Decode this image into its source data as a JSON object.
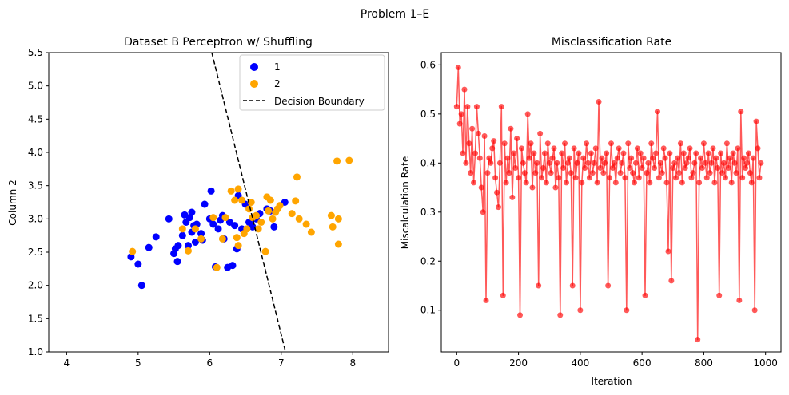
{
  "figure": {
    "suptitle": "Problem 1–E"
  },
  "chart_data": [
    {
      "type": "scatter",
      "title": "Dataset B Perceptron w/ Shuffling",
      "xlabel": "",
      "ylabel": "Column 2",
      "xlim": [
        3.75,
        8.5
      ],
      "ylim": [
        1.0,
        5.5
      ],
      "xticks": [
        "4",
        "5",
        "6",
        "7",
        "8"
      ],
      "yticks": [
        "1.0",
        "1.5",
        "2.0",
        "2.5",
        "3.0",
        "3.5",
        "4.0",
        "4.5",
        "5.0",
        "5.5"
      ],
      "grid": false,
      "legend_position": "top-right",
      "series": [
        {
          "name": "1",
          "color": "#0000ff",
          "points": [
            [
              4.9,
              2.43
            ],
            [
              5.0,
              2.32
            ],
            [
              5.05,
              2.0
            ],
            [
              5.15,
              2.57
            ],
            [
              5.25,
              2.73
            ],
            [
              5.43,
              3.0
            ],
            [
              5.5,
              2.48
            ],
            [
              5.52,
              2.55
            ],
            [
              5.55,
              2.36
            ],
            [
              5.56,
              2.6
            ],
            [
              5.62,
              2.75
            ],
            [
              5.65,
              3.06
            ],
            [
              5.67,
              2.95
            ],
            [
              5.7,
              2.6
            ],
            [
              5.72,
              3.02
            ],
            [
              5.75,
              3.1
            ],
            [
              5.75,
              2.8
            ],
            [
              5.78,
              2.9
            ],
            [
              5.8,
              2.65
            ],
            [
              5.82,
              2.92
            ],
            [
              5.88,
              2.78
            ],
            [
              5.9,
              2.68
            ],
            [
              5.93,
              3.22
            ],
            [
              6.0,
              3.0
            ],
            [
              6.02,
              3.42
            ],
            [
              6.05,
              2.92
            ],
            [
              6.08,
              2.28
            ],
            [
              6.12,
              2.85
            ],
            [
              6.15,
              2.98
            ],
            [
              6.18,
              3.05
            ],
            [
              6.2,
              2.7
            ],
            [
              6.25,
              2.27
            ],
            [
              6.28,
              2.95
            ],
            [
              6.32,
              2.3
            ],
            [
              6.35,
              2.9
            ],
            [
              6.38,
              2.55
            ],
            [
              6.4,
              3.35
            ],
            [
              6.45,
              2.85
            ],
            [
              6.5,
              3.22
            ],
            [
              6.55,
              2.95
            ],
            [
              6.6,
              2.88
            ],
            [
              6.65,
              3.0
            ],
            [
              6.7,
              3.08
            ],
            [
              6.8,
              3.15
            ],
            [
              6.85,
              3.12
            ],
            [
              6.9,
              2.88
            ],
            [
              7.05,
              3.25
            ]
          ]
        },
        {
          "name": "2",
          "color": "#ffa500",
          "points": [
            [
              4.92,
              2.51
            ],
            [
              5.62,
              2.85
            ],
            [
              5.7,
              2.52
            ],
            [
              5.8,
              2.85
            ],
            [
              5.88,
              2.7
            ],
            [
              6.05,
              3.02
            ],
            [
              6.1,
              2.27
            ],
            [
              6.18,
              2.7
            ],
            [
              6.22,
              3.02
            ],
            [
              6.3,
              3.42
            ],
            [
              6.35,
              3.28
            ],
            [
              6.38,
              2.72
            ],
            [
              6.4,
              3.45
            ],
            [
              6.4,
              2.6
            ],
            [
              6.45,
              3.28
            ],
            [
              6.48,
              2.78
            ],
            [
              6.52,
              2.85
            ],
            [
              6.55,
              3.15
            ],
            [
              6.58,
              3.25
            ],
            [
              6.6,
              3.02
            ],
            [
              6.65,
              3.05
            ],
            [
              6.68,
              2.85
            ],
            [
              6.72,
              2.95
            ],
            [
              6.78,
              2.51
            ],
            [
              6.8,
              3.33
            ],
            [
              6.82,
              3.12
            ],
            [
              6.85,
              3.28
            ],
            [
              6.88,
              3.0
            ],
            [
              6.92,
              3.1
            ],
            [
              6.95,
              3.15
            ],
            [
              6.98,
              3.2
            ],
            [
              7.15,
              3.08
            ],
            [
              7.2,
              3.27
            ],
            [
              7.22,
              3.63
            ],
            [
              7.25,
              3.0
            ],
            [
              7.35,
              2.92
            ],
            [
              7.42,
              2.8
            ],
            [
              7.7,
              3.05
            ],
            [
              7.72,
              2.88
            ],
            [
              7.78,
              3.87
            ],
            [
              7.8,
              3.0
            ],
            [
              7.8,
              2.62
            ],
            [
              7.95,
              3.88
            ]
          ]
        },
        {
          "name": "Decision Boundary",
          "style": "dashed",
          "color": "#000000",
          "line": [
            [
              6.03,
              5.5
            ],
            [
              7.06,
              1.0
            ]
          ]
        }
      ]
    },
    {
      "type": "line",
      "title": "Misclassification Rate",
      "xlabel": "Iteration",
      "ylabel": "Miscalculation Rate",
      "xlim": [
        -50,
        1050
      ],
      "ylim": [
        0.015,
        0.625
      ],
      "xticks": [
        "0",
        "200",
        "400",
        "600",
        "800",
        "1000"
      ],
      "yticks": [
        "0.1",
        "0.2",
        "0.3",
        "0.4",
        "0.5",
        "0.6"
      ],
      "grid": false,
      "series": [
        {
          "name": "",
          "color": "#ff0000",
          "x_start": 0,
          "x_step": 5,
          "values": [
            0.515,
            0.595,
            0.48,
            0.5,
            0.42,
            0.55,
            0.4,
            0.515,
            0.44,
            0.38,
            0.47,
            0.36,
            0.42,
            0.515,
            0.46,
            0.41,
            0.35,
            0.3,
            0.455,
            0.12,
            0.38,
            0.41,
            0.4,
            0.43,
            0.445,
            0.37,
            0.34,
            0.31,
            0.4,
            0.515,
            0.13,
            0.44,
            0.36,
            0.41,
            0.38,
            0.47,
            0.33,
            0.42,
            0.39,
            0.45,
            0.37,
            0.09,
            0.43,
            0.4,
            0.38,
            0.36,
            0.5,
            0.41,
            0.44,
            0.35,
            0.42,
            0.38,
            0.4,
            0.15,
            0.46,
            0.37,
            0.39,
            0.42,
            0.36,
            0.44,
            0.4,
            0.38,
            0.41,
            0.43,
            0.35,
            0.4,
            0.37,
            0.09,
            0.42,
            0.39,
            0.44,
            0.36,
            0.4,
            0.41,
            0.38,
            0.15,
            0.43,
            0.37,
            0.4,
            0.42,
            0.1,
            0.36,
            0.41,
            0.39,
            0.44,
            0.4,
            0.37,
            0.42,
            0.38,
            0.4,
            0.43,
            0.36,
            0.525,
            0.39,
            0.41,
            0.38,
            0.4,
            0.42,
            0.15,
            0.37,
            0.44,
            0.39,
            0.4,
            0.36,
            0.41,
            0.43,
            0.38,
            0.4,
            0.42,
            0.37,
            0.1,
            0.44,
            0.39,
            0.41,
            0.38,
            0.36,
            0.4,
            0.43,
            0.37,
            0.42,
            0.39,
            0.41,
            0.13,
            0.38,
            0.4,
            0.36,
            0.44,
            0.41,
            0.39,
            0.42,
            0.505,
            0.37,
            0.4,
            0.38,
            0.43,
            0.41,
            0.36,
            0.22,
            0.42,
            0.16,
            0.39,
            0.4,
            0.37,
            0.41,
            0.38,
            0.44,
            0.36,
            0.42,
            0.39,
            0.4,
            0.41,
            0.43,
            0.37,
            0.38,
            0.4,
            0.42,
            0.04,
            0.36,
            0.41,
            0.39,
            0.44,
            0.4,
            0.37,
            0.42,
            0.38,
            0.4,
            0.43,
            0.36,
            0.41,
            0.39,
            0.13,
            0.42,
            0.38,
            0.4,
            0.37,
            0.44,
            0.39,
            0.41,
            0.36,
            0.42,
            0.4,
            0.38,
            0.43,
            0.12,
            0.505,
            0.37,
            0.41,
            0.39,
            0.4,
            0.42,
            0.38,
            0.36,
            0.41,
            0.1,
            0.485,
            0.43,
            0.37,
            0.4
          ]
        }
      ]
    }
  ]
}
